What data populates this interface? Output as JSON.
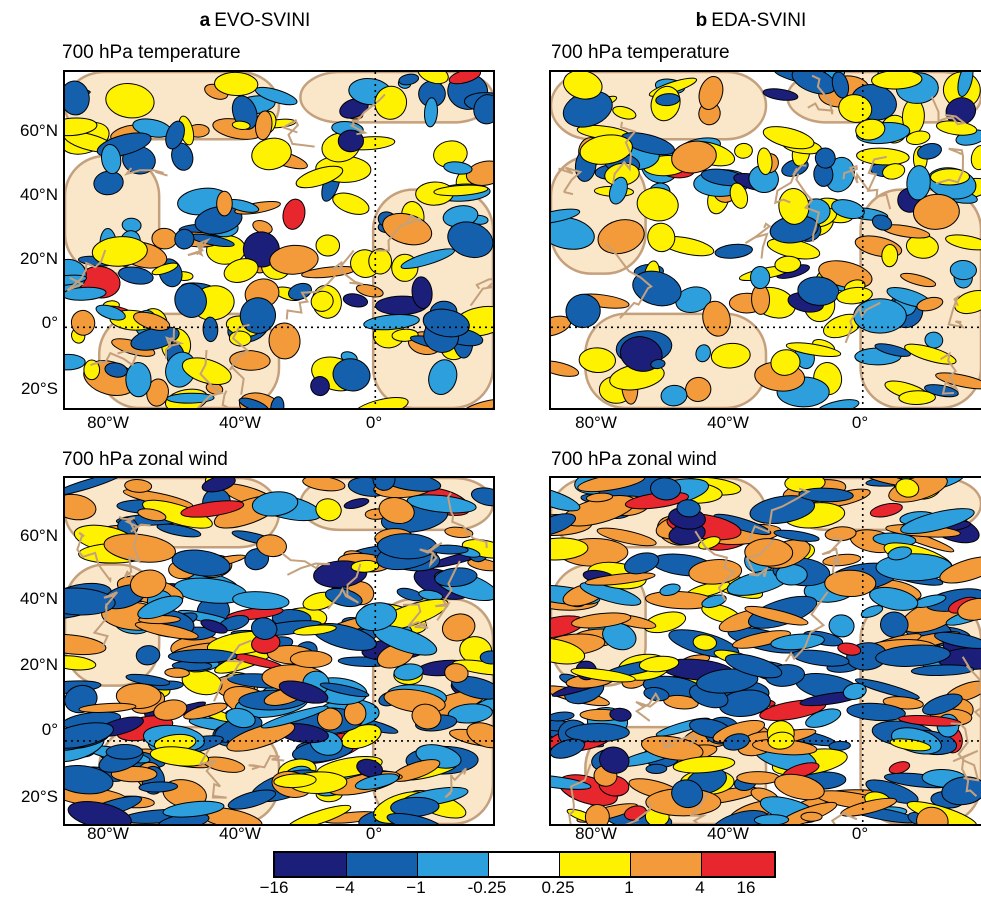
{
  "columns": [
    {
      "letter": "a",
      "name": "EVO-SVINI"
    },
    {
      "letter": "b",
      "name": "EDA-SVINI"
    }
  ],
  "panels": [
    {
      "title": "700 hPa temperature"
    },
    {
      "title": "700 hPa temperature"
    },
    {
      "title": "700 hPa zonal wind"
    },
    {
      "title": "700 hPa zonal wind"
    }
  ],
  "lat_labels": [
    "60°N",
    "40°N",
    "20°N",
    "0°",
    "20°S"
  ],
  "lon_labels": [
    "80°W",
    "40°W",
    "0°"
  ],
  "colorbar": {
    "labels": [
      "−16",
      "−4",
      "−1",
      "-0.25",
      "0.25",
      "1",
      "4",
      "16"
    ],
    "colors": [
      "#1b1f7a",
      "#1560ad",
      "#2c9fdc",
      "#ffffff",
      "#fff200",
      "#f39b3a",
      "#e8262d"
    ]
  },
  "map_colors": {
    "land": "#fae6c9",
    "coast": "#c4a07c",
    "ocean": "#ffffff"
  }
}
